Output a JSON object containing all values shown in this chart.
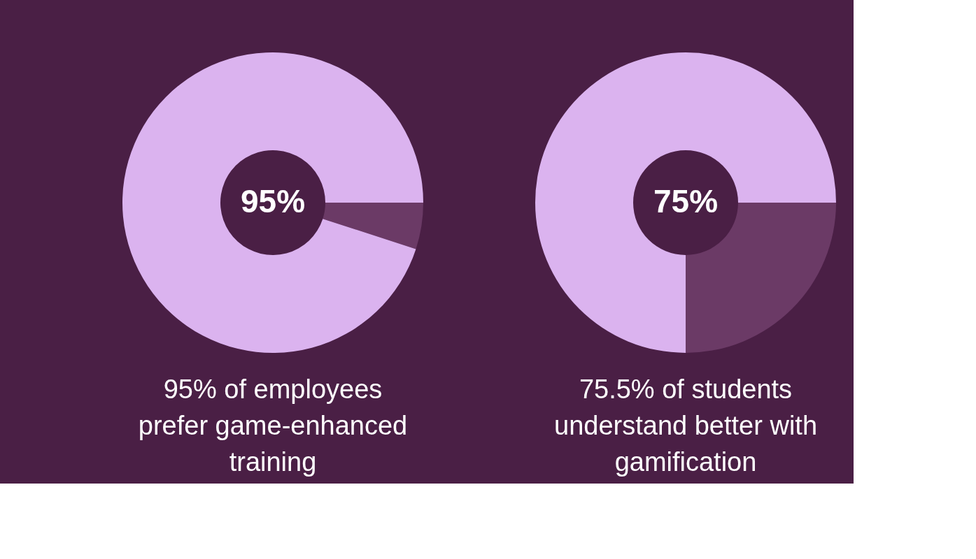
{
  "chart_data": [
    {
      "type": "donut",
      "title": "95% of employees prefer game-enhanced training",
      "categories": [
        null,
        null
      ],
      "values": [
        5,
        95
      ],
      "colors": [
        "#6b3a66",
        "#dbb3ef"
      ],
      "annotations": [
        "95%"
      ]
    },
    {
      "type": "donut",
      "title": "75.5% of students understand better with gamification",
      "categories": [
        null,
        null
      ],
      "values": [
        25,
        75
      ],
      "colors": [
        "#6b3a66",
        "#dbb3ef"
      ],
      "annotations": [
        "75%"
      ]
    }
  ]
}
